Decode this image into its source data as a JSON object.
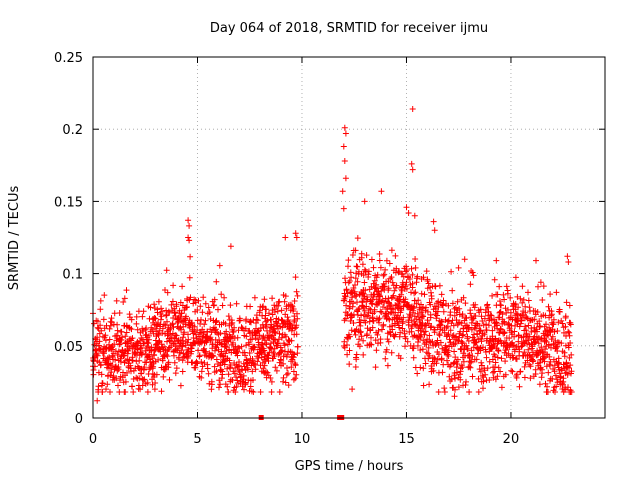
{
  "chart_data": {
    "type": "scatter",
    "title": "Day 064 of 2018, SRMTID for receiver ijmu",
    "xlabel": "GPS time / hours",
    "ylabel": "SRMTID / TECUs",
    "xlim": [
      0,
      24.5
    ],
    "ylim": [
      0,
      0.25
    ],
    "xticks": [
      "0",
      "5",
      "10",
      "15",
      "20"
    ],
    "yticks": [
      "0",
      "0.05",
      "0.1",
      "0.15",
      "0.2",
      "0.25"
    ],
    "grid": true,
    "marker": "+",
    "color": "#ff0000",
    "series": [
      {
        "segments": [
          {
            "x_start": 0.0,
            "x_end": 9.8,
            "base": [
              [
                0,
                0.045
              ],
              [
                1,
                0.045
              ],
              [
                2,
                0.042
              ],
              [
                3,
                0.05
              ],
              [
                4,
                0.06
              ],
              [
                5,
                0.058
              ],
              [
                6,
                0.05
              ],
              [
                7,
                0.045
              ],
              [
                8,
                0.052
              ],
              [
                9,
                0.055
              ],
              [
                9.8,
                0.055
              ]
            ],
            "spread": 0.015
          },
          {
            "x_start": 12.0,
            "x_end": 22.9,
            "base": [
              [
                12,
                0.075
              ],
              [
                13,
                0.08
              ],
              [
                14,
                0.075
              ],
              [
                15,
                0.08
              ],
              [
                16,
                0.06
              ],
              [
                17,
                0.05
              ],
              [
                18,
                0.055
              ],
              [
                19,
                0.055
              ],
              [
                20,
                0.06
              ],
              [
                21,
                0.055
              ],
              [
                22,
                0.05
              ],
              [
                22.9,
                0.045
              ]
            ],
            "spread": 0.017
          }
        ],
        "highlights": [
          {
            "x": 4.55,
            "y": 0.137
          },
          {
            "x": 4.6,
            "y": 0.133
          },
          {
            "x": 4.55,
            "y": 0.125
          },
          {
            "x": 4.6,
            "y": 0.123
          },
          {
            "x": 6.6,
            "y": 0.119
          },
          {
            "x": 9.2,
            "y": 0.125
          },
          {
            "x": 9.7,
            "y": 0.128
          },
          {
            "x": 9.75,
            "y": 0.125
          },
          {
            "x": 0.2,
            "y": 0.012
          },
          {
            "x": 12.05,
            "y": 0.201
          },
          {
            "x": 12.1,
            "y": 0.197
          },
          {
            "x": 12.0,
            "y": 0.188
          },
          {
            "x": 12.05,
            "y": 0.178
          },
          {
            "x": 12.1,
            "y": 0.166
          },
          {
            "x": 11.95,
            "y": 0.157
          },
          {
            "x": 12.0,
            "y": 0.145
          },
          {
            "x": 15.3,
            "y": 0.214
          },
          {
            "x": 15.25,
            "y": 0.176
          },
          {
            "x": 15.3,
            "y": 0.172
          },
          {
            "x": 13.8,
            "y": 0.157
          },
          {
            "x": 13.0,
            "y": 0.15
          },
          {
            "x": 15.0,
            "y": 0.146
          },
          {
            "x": 15.1,
            "y": 0.142
          },
          {
            "x": 15.4,
            "y": 0.14
          },
          {
            "x": 16.3,
            "y": 0.136
          },
          {
            "x": 16.35,
            "y": 0.13
          },
          {
            "x": 12.4,
            "y": 0.02
          },
          {
            "x": 22.7,
            "y": 0.112
          },
          {
            "x": 22.75,
            "y": 0.108
          },
          {
            "x": 21.2,
            "y": 0.109
          },
          {
            "x": 19.3,
            "y": 0.109
          },
          {
            "x": 17.3,
            "y": 0.015
          },
          {
            "x": 21.7,
            "y": 0.018
          }
        ],
        "zero_markers": [
          {
            "x": 8.05,
            "y": 0
          },
          {
            "x": 11.8,
            "y": 0
          },
          {
            "x": 11.9,
            "y": 0
          }
        ]
      }
    ]
  }
}
